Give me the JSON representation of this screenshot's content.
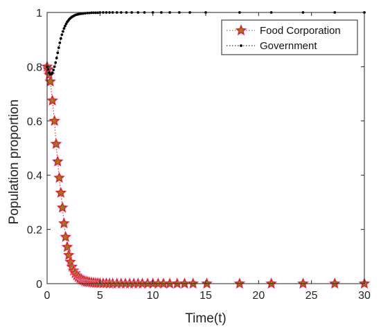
{
  "chart_data": {
    "type": "line",
    "xlabel": "Time(t)",
    "ylabel": "Population proportion",
    "xlim": [
      0,
      30
    ],
    "ylim": [
      0,
      1
    ],
    "xticks": [
      0,
      5,
      10,
      15,
      20,
      25,
      30
    ],
    "yticks": [
      0,
      0.2,
      0.4,
      0.6,
      0.8,
      1
    ],
    "xtick_labels": [
      "0",
      "5",
      "10",
      "15",
      "20",
      "25",
      "30"
    ],
    "ytick_labels": [
      "0",
      "0.2",
      "0.4",
      "0.6",
      "0.8",
      "1"
    ],
    "grid": false,
    "legend_position": "top-right",
    "series": [
      {
        "name": "Food Corporation",
        "marker": "star",
        "line_style": "dotted",
        "line_color": "#d62020",
        "marker_edge": "#d62020",
        "marker_fill": "#9a7a1e",
        "marker_halo": "#ef9fd8",
        "x": [
          0,
          0.1,
          0.2,
          0.3,
          0.5,
          0.7,
          0.85,
          1.0,
          1.15,
          1.3,
          1.45,
          1.6,
          1.75,
          1.9,
          2.05,
          2.2,
          2.35,
          2.5,
          2.65,
          2.8,
          2.95,
          3.1,
          3.25,
          3.4,
          3.55,
          3.7,
          3.85,
          4.0,
          4.2,
          4.4,
          4.6,
          4.8,
          5.0,
          5.3,
          5.6,
          5.9,
          6.2,
          6.6,
          7.0,
          7.4,
          7.8,
          8.2,
          8.6,
          9.0,
          9.5,
          10.0,
          10.5,
          11.0,
          11.6,
          12.3,
          13.0,
          13.8,
          15.1,
          18.2,
          21.2,
          24.2,
          27.2,
          30.0
        ],
        "y": [
          0.8,
          0.79,
          0.77,
          0.745,
          0.675,
          0.6,
          0.515,
          0.45,
          0.39,
          0.335,
          0.28,
          0.222,
          0.172,
          0.135,
          0.105,
          0.08,
          0.062,
          0.048,
          0.038,
          0.03,
          0.024,
          0.019,
          0.015,
          0.012,
          0.009,
          0.007,
          0.006,
          0.005,
          0.004,
          0.003,
          0.002,
          0.002,
          0.001,
          0.001,
          0.001,
          0.0,
          0.0,
          0.0,
          0.0,
          0.0,
          0.0,
          0.0,
          0.0,
          0.0,
          0.0,
          0.0,
          0.0,
          0.0,
          0.0,
          0.0,
          0.0,
          0.0,
          0.0,
          0.0,
          0.0,
          0.0,
          0.0,
          0.0
        ]
      },
      {
        "name": "Government",
        "marker": "dot",
        "line_style": "dotted",
        "line_color": "#000000",
        "marker_color": "#000000",
        "x": [
          0,
          0.1,
          0.2,
          0.3,
          0.4,
          0.5,
          0.6,
          0.7,
          0.8,
          0.9,
          1.0,
          1.1,
          1.2,
          1.3,
          1.4,
          1.5,
          1.6,
          1.7,
          1.8,
          1.9,
          2.0,
          2.1,
          2.2,
          2.3,
          2.4,
          2.5,
          2.6,
          2.7,
          2.8,
          2.9,
          3.0,
          3.2,
          3.4,
          3.6,
          3.8,
          4.0,
          4.2,
          4.4,
          4.6,
          4.8,
          5.0,
          5.3,
          5.6,
          5.9,
          6.2,
          6.6,
          7.0,
          7.5,
          8.0,
          8.6,
          9.2,
          10.0,
          10.8,
          11.6,
          12.5,
          13.5,
          15.0,
          18.2,
          21.2,
          24.2,
          27.2,
          30.0
        ],
        "y": [
          0.8,
          0.79,
          0.778,
          0.772,
          0.773,
          0.778,
          0.788,
          0.8,
          0.815,
          0.832,
          0.851,
          0.87,
          0.888,
          0.904,
          0.918,
          0.93,
          0.941,
          0.95,
          0.958,
          0.965,
          0.97,
          0.975,
          0.979,
          0.982,
          0.985,
          0.987,
          0.989,
          0.991,
          0.992,
          0.993,
          0.994,
          0.995,
          0.996,
          0.997,
          0.998,
          0.998,
          0.999,
          0.999,
          0.999,
          0.999,
          1.0,
          1.0,
          1.0,
          1.0,
          1.0,
          1.0,
          1.0,
          1.0,
          1.0,
          1.0,
          1.0,
          1.0,
          1.0,
          1.0,
          1.0,
          1.0,
          1.0,
          1.0,
          1.0,
          1.0,
          1.0,
          1.0
        ]
      }
    ]
  }
}
